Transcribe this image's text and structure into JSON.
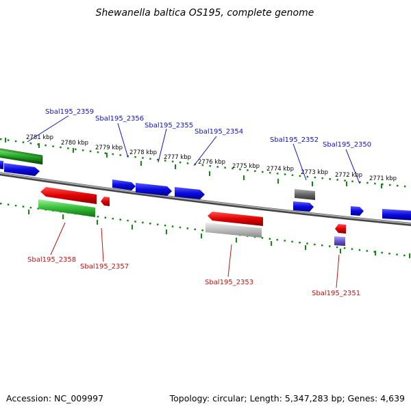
{
  "title": "Shewanella baltica OS195, complete genome",
  "footer": {
    "accession": "Accession: NC_009997",
    "summary": "Topology: circular; Length: 5,347,283 bp; Genes: 4,639"
  },
  "ticks": [
    {
      "label": "2781 kbp"
    },
    {
      "label": "2780 kbp"
    },
    {
      "label": "2779 kbp"
    },
    {
      "label": "2778 kbp"
    },
    {
      "label": "2777 kbp"
    },
    {
      "label": "2776 kbp"
    },
    {
      "label": "2775 kbp"
    },
    {
      "label": "2774 kbp"
    },
    {
      "label": "2773 kbp"
    },
    {
      "label": "2772 kbp"
    },
    {
      "label": "2771 kbp"
    }
  ],
  "gene_labels_top": [
    {
      "label": "Sbal195_2359"
    },
    {
      "label": "Sbal195_2356"
    },
    {
      "label": "Sbal195_2355"
    },
    {
      "label": "Sbal195_2354"
    },
    {
      "label": "Sbal195_2352"
    },
    {
      "label": "Sbal195_2350"
    }
  ],
  "gene_labels_bottom": [
    {
      "label": "Sbal195_2358"
    },
    {
      "label": "Sbal195_2357"
    },
    {
      "label": "Sbal195_2353"
    },
    {
      "label": "Sbal195_2351"
    }
  ],
  "colors": {
    "forward_cds": "#1010e0",
    "reverse_cds": "#e00000",
    "rna": "#22aa22",
    "pseudo": "#777777",
    "misc": "#7766cc",
    "backbone": "#888888",
    "tick": "#118811",
    "label_top": "#1010c0",
    "label_bottom": "#c01010"
  }
}
